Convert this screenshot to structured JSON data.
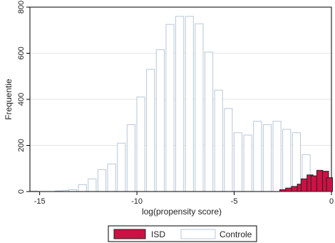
{
  "chart_data": {
    "type": "bar",
    "xlabel": "log(propensity score)",
    "ylabel": "Frequentie",
    "xlim": [
      -15.5,
      0
    ],
    "ylim": [
      0,
      800
    ],
    "x_ticks": [
      -15,
      -10,
      -5,
      0
    ],
    "y_ticks": [
      0,
      200,
      400,
      600,
      800
    ],
    "bin_width": 0.5,
    "legend_position": "bottom",
    "series": [
      {
        "name": "ISD",
        "fill": "#cc1144",
        "stroke": "#222222",
        "x": [
          -2.5,
          -2.2,
          -1.9,
          -1.6,
          -1.4,
          -1.1,
          -0.9,
          -0.6,
          -0.3,
          -0.1
        ],
        "values": [
          8,
          15,
          22,
          32,
          55,
          72,
          68,
          92,
          88,
          60
        ]
      },
      {
        "name": "Controle",
        "fill": "#ffffff",
        "stroke": "#b8c7d9",
        "x": [
          -15.3,
          -14.0,
          -13.6,
          -13.3,
          -12.8,
          -12.3,
          -11.8,
          -11.3,
          -10.8,
          -10.3,
          -9.8,
          -9.3,
          -8.8,
          -8.3,
          -7.8,
          -7.3,
          -6.8,
          -6.3,
          -5.8,
          -5.3,
          -4.8,
          -4.3,
          -3.8,
          -3.3,
          -2.8,
          -2.3,
          -1.8,
          -1.3,
          -0.8,
          -0.3
        ],
        "values": [
          2,
          3,
          5,
          8,
          30,
          55,
          95,
          120,
          210,
          290,
          410,
          530,
          615,
          725,
          760,
          760,
          728,
          605,
          440,
          360,
          255,
          245,
          305,
          290,
          305,
          270,
          255,
          160,
          0,
          0
        ]
      }
    ]
  }
}
